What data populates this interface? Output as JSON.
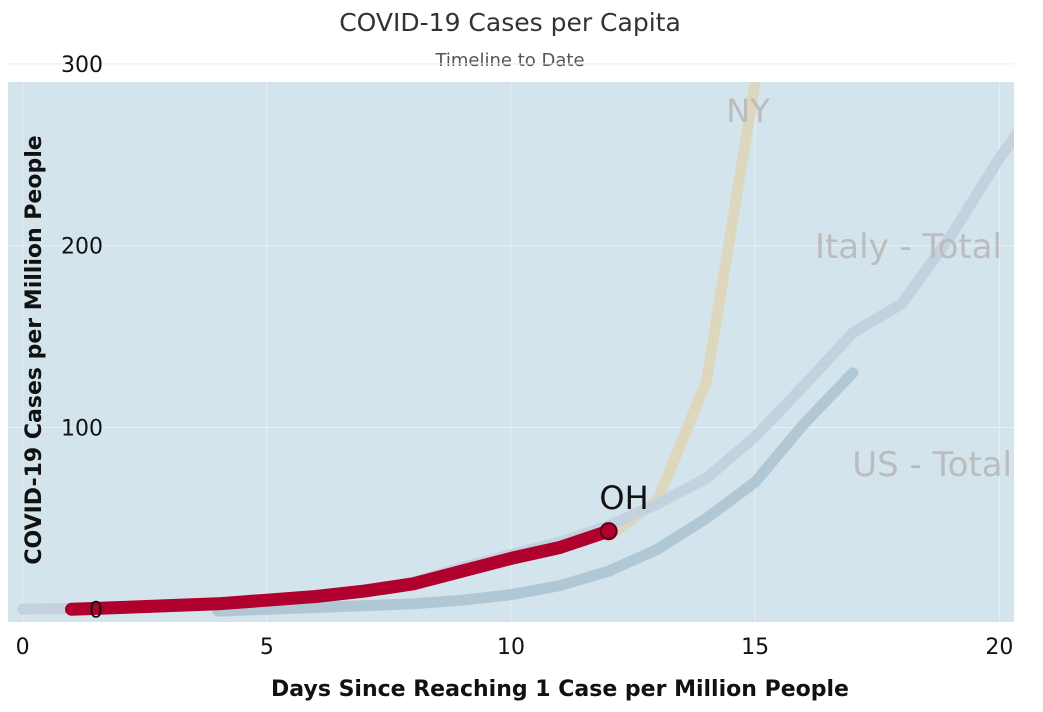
{
  "chart_data": {
    "type": "line",
    "title": "COVID-19 Cases per Capita",
    "subtitle": "Timeline to Date",
    "xlabel": "Days Since Reaching 1 Case per Million People",
    "ylabel": "COVID-19 Cases per Million People",
    "xlim": [
      -0.3,
      20.3
    ],
    "ylim": [
      -7,
      290
    ],
    "xticks": [
      "0",
      "5",
      "10",
      "15",
      "20"
    ],
    "yticks": [
      "0",
      "100",
      "200",
      "300"
    ],
    "grid": true,
    "colors": {
      "plot_bg": "#d3e4ec",
      "grid": "#e6eff4"
    },
    "series": [
      {
        "name": "NY",
        "color": "#ddd8bd",
        "width": 11,
        "x": [
          12,
          12.5,
          13,
          14,
          15,
          16
        ],
        "y": [
          40,
          50,
          60,
          125,
          290,
          480
        ]
      },
      {
        "name": "Italy - Total",
        "color": "#c4d1de",
        "width": 11,
        "x": [
          0,
          2,
          4,
          6,
          7,
          8,
          9,
          10,
          11,
          12,
          13,
          14,
          15,
          16,
          17,
          18,
          19,
          20,
          21
        ],
        "y": [
          0,
          1,
          3,
          6,
          10,
          15,
          23,
          30,
          37,
          46,
          58,
          72,
          95,
          123,
          152,
          168,
          205,
          248,
          285
        ]
      },
      {
        "name": "US - Total",
        "color": "#b0c8d6",
        "width": 11,
        "x": [
          4,
          6,
          8,
          9,
          10,
          11,
          12,
          13,
          14,
          15,
          16,
          17
        ],
        "y": [
          -1,
          1,
          3,
          5,
          8,
          13,
          21,
          33,
          50,
          70,
          102,
          130
        ]
      },
      {
        "name": "OH",
        "color": "#b0002e",
        "width": 13,
        "x": [
          1,
          2,
          3,
          4,
          5,
          6,
          7,
          8,
          9,
          10,
          11,
          12
        ],
        "y": [
          0,
          1,
          2,
          3,
          5,
          7,
          10,
          14,
          21,
          28,
          34,
          43
        ]
      }
    ],
    "annotations": [
      {
        "text": "NY",
        "color": "#bcbcbc"
      },
      {
        "text": "Italy - Total",
        "color": "#bcbcbc"
      },
      {
        "text": "US - Total",
        "color": "#bcbcbc"
      },
      {
        "text": "OH",
        "color": "#111111"
      }
    ]
  }
}
